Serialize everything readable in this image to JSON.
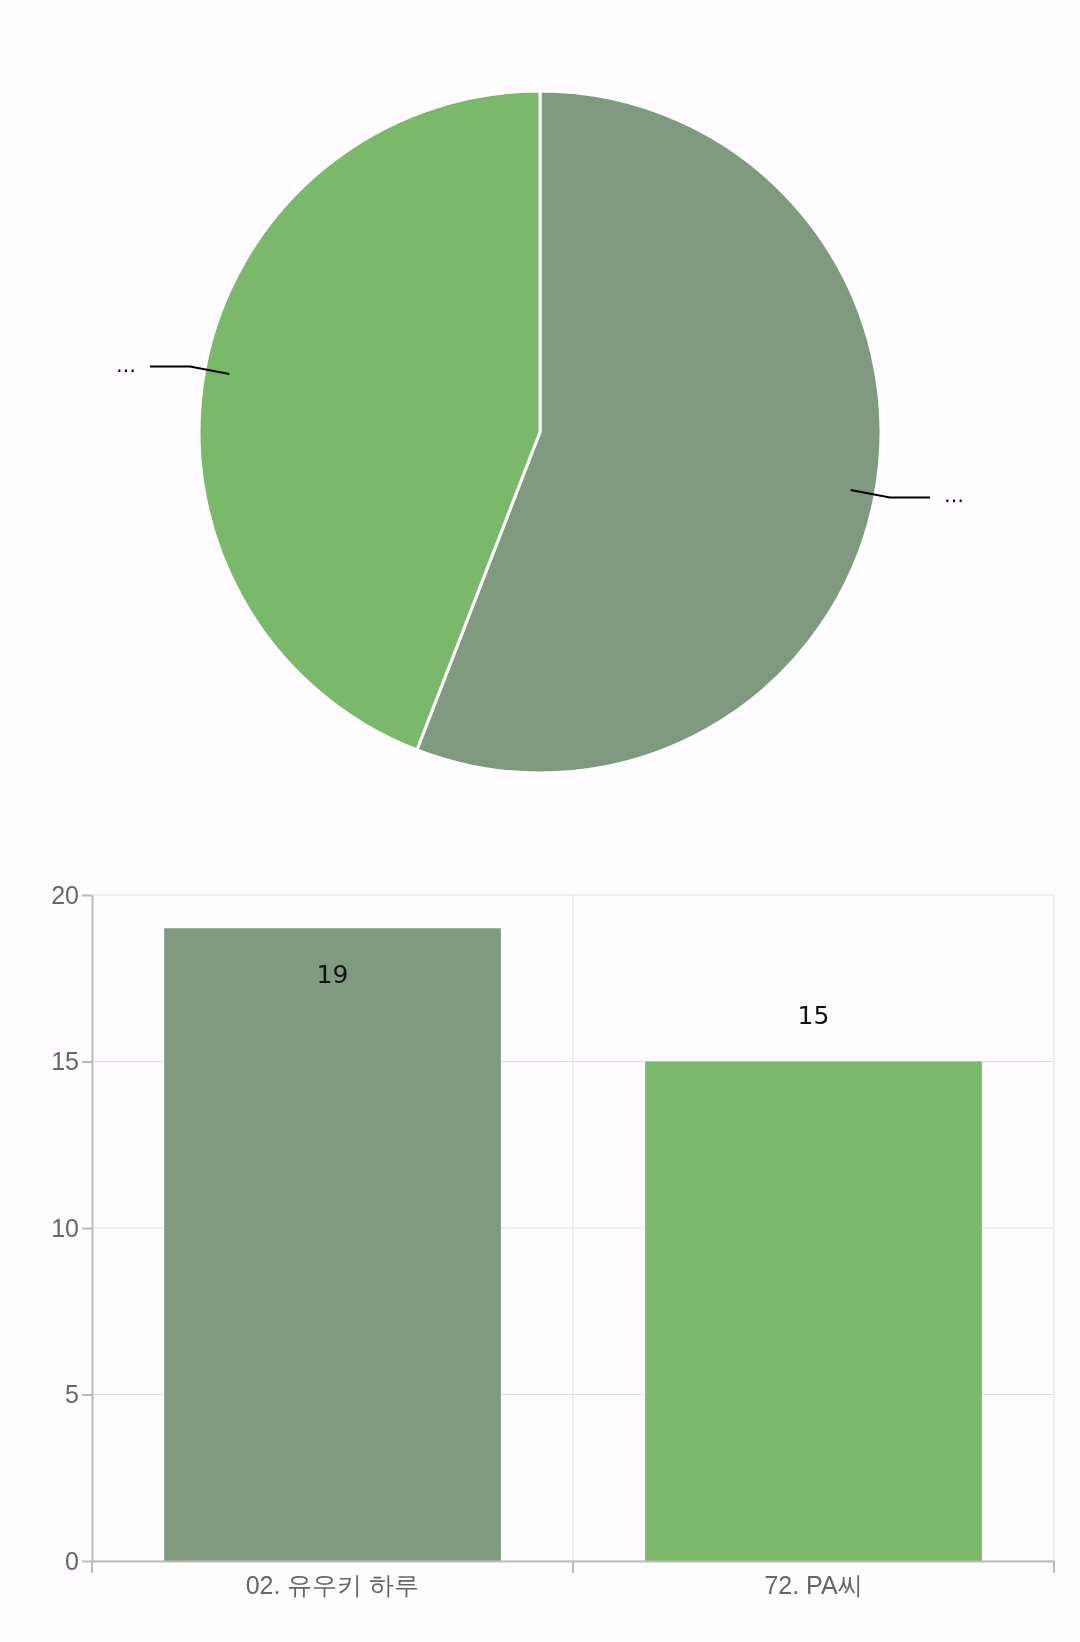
{
  "chart_data": [
    {
      "type": "pie",
      "categories": [
        "…",
        "…"
      ],
      "values": [
        55.88,
        44.12
      ],
      "colors": [
        "#7f9a7e",
        "#7bb96a"
      ]
    },
    {
      "type": "bar",
      "categories": [
        "02. 유우키 하루",
        "72. PA씨"
      ],
      "values": [
        19,
        15
      ],
      "colors": [
        "#7f9a7e",
        "#7bb96a"
      ],
      "ylim": [
        0,
        20
      ],
      "yticks": [
        0,
        5,
        10,
        15,
        20
      ],
      "grid": true,
      "data_labels": true
    }
  ]
}
